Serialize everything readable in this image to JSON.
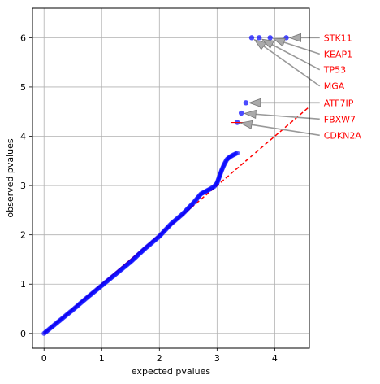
{
  "chart_data": {
    "type": "scatter",
    "title": "",
    "xlabel": "expected pvalues",
    "ylabel": "observed pvalues",
    "xlim": [
      -0.2,
      4.6
    ],
    "ylim": [
      -0.3,
      6.6
    ],
    "xticks": [
      0,
      1,
      2,
      3,
      4
    ],
    "yticks": [
      0,
      1,
      2,
      3,
      4,
      5,
      6
    ],
    "grid": true,
    "point_color": "#0000ff",
    "diagonal": {
      "style": "dashed",
      "color": "#ff0000",
      "from": [
        2.55,
        2.55
      ],
      "to": [
        4.6,
        4.6
      ]
    },
    "reference_line": {
      "style": "solid",
      "color": "#ff0000",
      "from": [
        0,
        0
      ],
      "to": [
        2.55,
        2.55
      ]
    },
    "curve_points": [
      [
        0,
        0
      ],
      [
        0.25,
        0.24
      ],
      [
        0.5,
        0.48
      ],
      [
        0.75,
        0.73
      ],
      [
        1.0,
        0.97
      ],
      [
        1.25,
        1.21
      ],
      [
        1.5,
        1.45
      ],
      [
        1.75,
        1.72
      ],
      [
        2.0,
        1.97
      ],
      [
        2.2,
        2.22
      ],
      [
        2.4,
        2.42
      ],
      [
        2.6,
        2.66
      ],
      [
        2.72,
        2.83
      ],
      [
        2.8,
        2.88
      ],
      [
        2.88,
        2.93
      ],
      [
        2.95,
        2.98
      ],
      [
        3.0,
        3.05
      ],
      [
        3.04,
        3.18
      ],
      [
        3.08,
        3.31
      ],
      [
        3.12,
        3.42
      ],
      [
        3.17,
        3.53
      ],
      [
        3.22,
        3.58
      ],
      [
        3.28,
        3.62
      ],
      [
        3.35,
        3.66
      ]
    ],
    "points": [
      [
        4.2,
        6.0
      ],
      [
        3.92,
        6.0
      ],
      [
        3.73,
        6.0
      ],
      [
        3.6,
        6.0
      ],
      [
        3.5,
        4.68
      ],
      [
        3.42,
        4.47
      ],
      [
        3.35,
        4.28
      ]
    ],
    "annotations": [
      {
        "label": "STK11",
        "point": [
          4.2,
          6.0
        ],
        "text_pos": [
          4.85,
          6.0
        ]
      },
      {
        "label": "KEAP1",
        "point": [
          3.92,
          6.0
        ],
        "text_pos": [
          4.85,
          5.67
        ]
      },
      {
        "label": "TP53",
        "point": [
          3.73,
          6.0
        ],
        "text_pos": [
          4.85,
          5.35
        ]
      },
      {
        "label": "MGA",
        "point": [
          3.6,
          6.0
        ],
        "text_pos": [
          4.85,
          5.02
        ]
      },
      {
        "label": "ATF7IP",
        "point": [
          3.5,
          4.68
        ],
        "text_pos": [
          4.85,
          4.68
        ]
      },
      {
        "label": "FBXW7",
        "point": [
          3.42,
          4.47
        ],
        "text_pos": [
          4.85,
          4.35
        ]
      },
      {
        "label": "CDKN2A",
        "point": [
          3.35,
          4.28
        ],
        "text_pos": [
          4.85,
          4.02
        ]
      }
    ],
    "annotation_text_color": "#ff0000",
    "arrow_color": "#999999"
  }
}
